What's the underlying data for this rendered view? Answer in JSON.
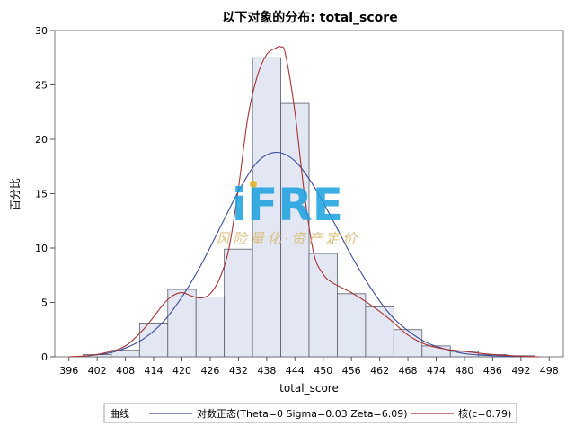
{
  "chart_data": {
    "type": "histogram",
    "title": "以下对象的分布: total_score",
    "xlabel": "total_score",
    "ylabel": "百分比",
    "xlim": [
      393,
      501
    ],
    "ylim": [
      0,
      30
    ],
    "x_ticks": [
      396,
      402,
      408,
      414,
      420,
      426,
      432,
      438,
      444,
      450,
      456,
      462,
      468,
      474,
      480,
      486,
      492,
      498
    ],
    "y_ticks": [
      0,
      5,
      10,
      15,
      20,
      25,
      30
    ],
    "bin_width": 6,
    "bins": [
      {
        "center": 402,
        "value": 0.2
      },
      {
        "center": 408,
        "value": 0.6
      },
      {
        "center": 414,
        "value": 3.1
      },
      {
        "center": 420,
        "value": 6.2
      },
      {
        "center": 426,
        "value": 5.5
      },
      {
        "center": 432,
        "value": 9.9
      },
      {
        "center": 438,
        "value": 27.5
      },
      {
        "center": 444,
        "value": 23.3
      },
      {
        "center": 450,
        "value": 9.5
      },
      {
        "center": 456,
        "value": 5.8
      },
      {
        "center": 462,
        "value": 4.6
      },
      {
        "center": 468,
        "value": 2.5
      },
      {
        "center": 474,
        "value": 1.0
      },
      {
        "center": 480,
        "value": 0.5
      },
      {
        "center": 486,
        "value": 0.2
      },
      {
        "center": 492,
        "value": 0.1
      }
    ],
    "series": [
      {
        "name": "对数正态(Theta=0 Sigma=0.03 Zeta=6.09)",
        "color": "#3a4a9a",
        "x": [
          400,
          404,
          408,
          412,
          416,
          420,
          424,
          428,
          432,
          436,
          440,
          444,
          448,
          452,
          456,
          460,
          464,
          468,
          472,
          476,
          480,
          484,
          488,
          492
        ],
        "y": [
          0.1,
          0.3,
          0.8,
          1.7,
          3.2,
          5.5,
          8.4,
          11.8,
          15.2,
          17.9,
          18.8,
          18.0,
          15.7,
          12.6,
          9.3,
          6.4,
          4.0,
          2.4,
          1.3,
          0.7,
          0.3,
          0.15,
          0.07,
          0.03
        ]
      },
      {
        "name": "核(c=0.79)",
        "color": "#a83232",
        "x": [
          396,
          400,
          404,
          408,
          412,
          416,
          418,
          420,
          422,
          424,
          426,
          428,
          430,
          432,
          434,
          436,
          438,
          440,
          441,
          442,
          444,
          446,
          448,
          450,
          452,
          456,
          460,
          464,
          468,
          472,
          476,
          480,
          484,
          488,
          492,
          496
        ],
        "y": [
          0.0,
          0.1,
          0.4,
          1.0,
          2.6,
          4.8,
          5.6,
          5.9,
          5.6,
          5.4,
          5.8,
          7.2,
          10.0,
          15.5,
          22.0,
          25.8,
          27.8,
          28.4,
          28.5,
          27.8,
          22.5,
          15.0,
          9.5,
          7.6,
          6.8,
          5.9,
          4.8,
          3.5,
          2.0,
          1.1,
          0.7,
          0.5,
          0.3,
          0.15,
          0.05,
          0.0
        ]
      }
    ],
    "legend": {
      "position": "bottom",
      "title": "曲线"
    },
    "watermark": {
      "logo_text": "iFRE",
      "tagline": "风险量化·资产定价"
    }
  }
}
